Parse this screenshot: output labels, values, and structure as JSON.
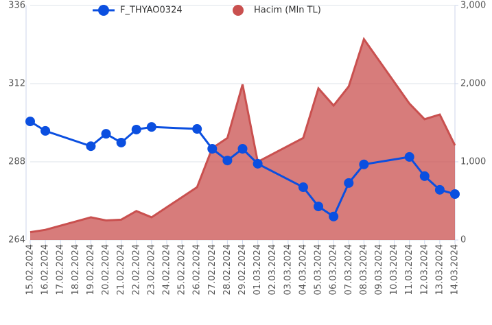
{
  "chart_data": {
    "type": "line-area",
    "xticks": [
      "15.02.2024",
      "16.02.2024",
      "17.02.2024",
      "18.02.2024",
      "19.02.2024",
      "20.02.2024",
      "21.02.2024",
      "22.02.2024",
      "23.02.2024",
      "24.02.2024",
      "25.02.2024",
      "26.02.2024",
      "27.02.2024",
      "28.02.2024",
      "29.02.2024",
      "01.03.2024",
      "02.03.2024",
      "03.03.2024",
      "04.03.2024",
      "05.03.2024",
      "06.03.2024",
      "07.03.2024",
      "08.03.2024",
      "09.03.2024",
      "10.03.2024",
      "11.03.2024",
      "12.03.2024",
      "13.03.2024",
      "14.03.2024"
    ],
    "x": [
      "15.02.2024",
      "16.02.2024",
      "19.02.2024",
      "20.02.2024",
      "21.02.2024",
      "22.02.2024",
      "23.02.2024",
      "26.02.2024",
      "27.02.2024",
      "28.02.2024",
      "29.02.2024",
      "01.03.2024",
      "04.03.2024",
      "05.03.2024",
      "06.03.2024",
      "07.03.2024",
      "08.03.2024",
      "11.03.2024",
      "12.03.2024",
      "13.03.2024",
      "14.03.2024"
    ],
    "series": [
      {
        "name": "F_THYAO0324",
        "type": "line",
        "color": "#0b4fe0",
        "values": [
          300.4,
          297.5,
          292.8,
          296.6,
          293.9,
          297.9,
          298.7,
          298.1,
          292.0,
          288.4,
          292.0,
          287.4,
          280.2,
          274.3,
          271.2,
          281.5,
          287.2,
          289.5,
          283.6,
          279.4,
          278.1
        ]
      },
      {
        "name": "Hacim (Mln TL)",
        "type": "area",
        "axis": "y2",
        "color": "#c9504f",
        "values": [
          100,
          130,
          290,
          250,
          260,
          370,
          290,
          675,
          1175,
          1305,
          1990,
          1000,
          1305,
          1940,
          1720,
          1965,
          2570,
          1745,
          1545,
          1605,
          1210
        ]
      }
    ],
    "ylim": [
      264,
      336
    ],
    "yticks": [
      264,
      288,
      312,
      336
    ],
    "y2lim": [
      0,
      3000
    ],
    "y2ticks": [
      0,
      {
        "value": 1000,
        "label": "1,000"
      },
      {
        "value": 2000,
        "label": "2,000"
      },
      {
        "value": 3000,
        "label": "3,000"
      }
    ],
    "grid": true
  }
}
